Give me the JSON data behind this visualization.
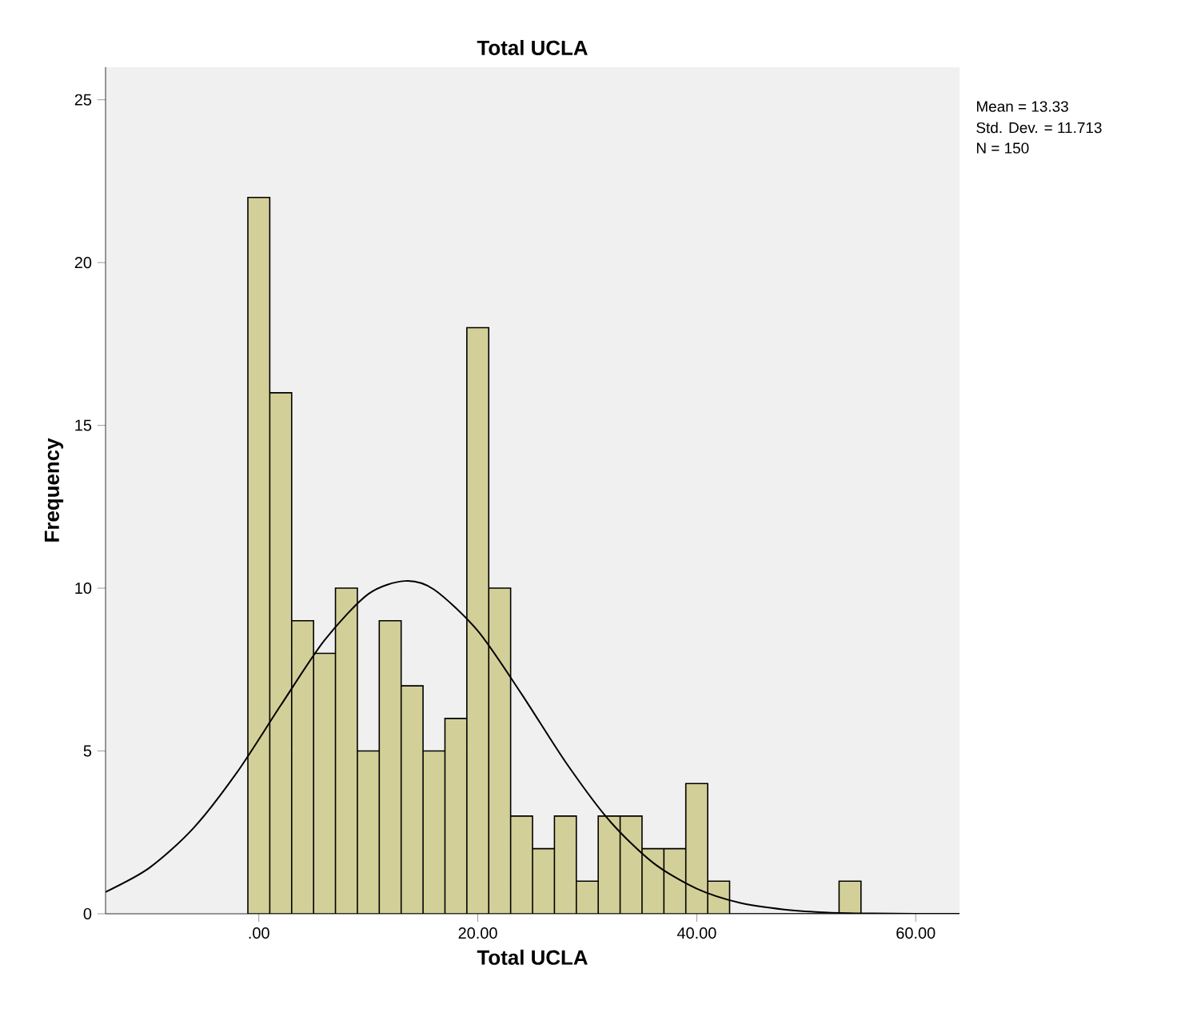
{
  "chart_data": {
    "type": "histogram",
    "title": "Total UCLA",
    "xlabel": "Total UCLA",
    "ylabel": "Frequency",
    "annotations": [
      "Mean = 13.33",
      "Std. Dev. = 11.713",
      "N = 150"
    ],
    "series": [
      {
        "type": "histogram",
        "color": "#d3cf98",
        "bins": [
          -1,
          1,
          3,
          5,
          7,
          9,
          11,
          13,
          15,
          17,
          19,
          21,
          23,
          25,
          27,
          29,
          31,
          33,
          35,
          37,
          39,
          41,
          43,
          45,
          47,
          49,
          51,
          53,
          55
        ],
        "values": [
          22,
          16,
          9,
          8,
          10,
          5,
          9,
          7,
          5,
          6,
          18,
          10,
          3,
          2,
          3,
          1,
          3,
          3,
          2,
          2,
          4,
          1,
          0,
          0,
          0,
          0,
          0,
          1
        ]
      },
      {
        "type": "line",
        "color": "#000000",
        "x": [
          -14,
          -10,
          -6,
          -2,
          2,
          6,
          10,
          13.33,
          16,
          20,
          24,
          28,
          32,
          36,
          40,
          44,
          48,
          52,
          56,
          60,
          64
        ],
        "values": [
          0.67,
          1.41,
          2.62,
          4.34,
          6.4,
          8.4,
          9.82,
          10.22,
          9.96,
          8.69,
          6.75,
          4.67,
          2.87,
          1.57,
          0.77,
          0.33,
          0.13,
          0.04,
          0.01,
          0,
          0
        ]
      }
    ],
    "xlim": [
      -14,
      64
    ],
    "ylim": [
      0,
      26
    ],
    "xticks": [
      {
        "value": 0,
        "label": ".00"
      },
      {
        "value": 20,
        "label": "20.00"
      },
      {
        "value": 40,
        "label": "40.00"
      },
      {
        "value": 60,
        "label": "60.00"
      }
    ],
    "yticks": [
      0,
      5,
      10,
      15,
      20,
      25
    ],
    "grid": false,
    "marker": "none",
    "line_style": "solid"
  }
}
